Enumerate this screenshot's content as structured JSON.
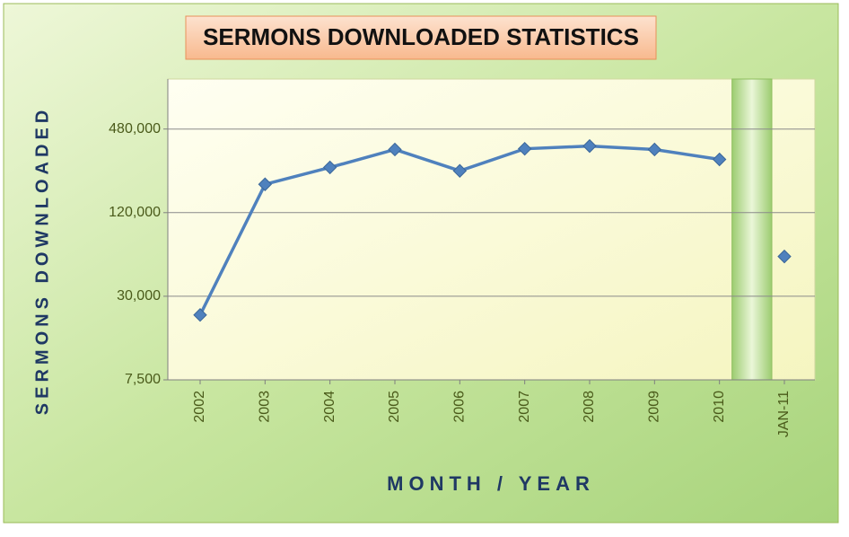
{
  "chart_data": {
    "type": "line",
    "title": "SERMONS DOWNLOADED STATISTICS",
    "x_label": "MONTH / YEAR",
    "y_label": "SERMONS DOWNLOADED",
    "categories": [
      "2002",
      "2003",
      "2004",
      "2005",
      "2006",
      "2007",
      "2008",
      "2009",
      "2010",
      "JAN-11"
    ],
    "values": [
      22000,
      192000,
      254000,
      342000,
      240000,
      346000,
      362000,
      342000,
      290000,
      58000
    ],
    "color": "#4f81bd",
    "log_scale": true,
    "grid": true,
    "gap_band_before": 9,
    "ylim": [
      7500,
      1100000
    ],
    "yticks": [
      {
        "value": 7500,
        "label": "7,500"
      },
      {
        "value": 30000,
        "label": "30,000"
      },
      {
        "value": 120000,
        "label": "120,000"
      },
      {
        "value": 480000,
        "label": "480,000"
      }
    ]
  }
}
